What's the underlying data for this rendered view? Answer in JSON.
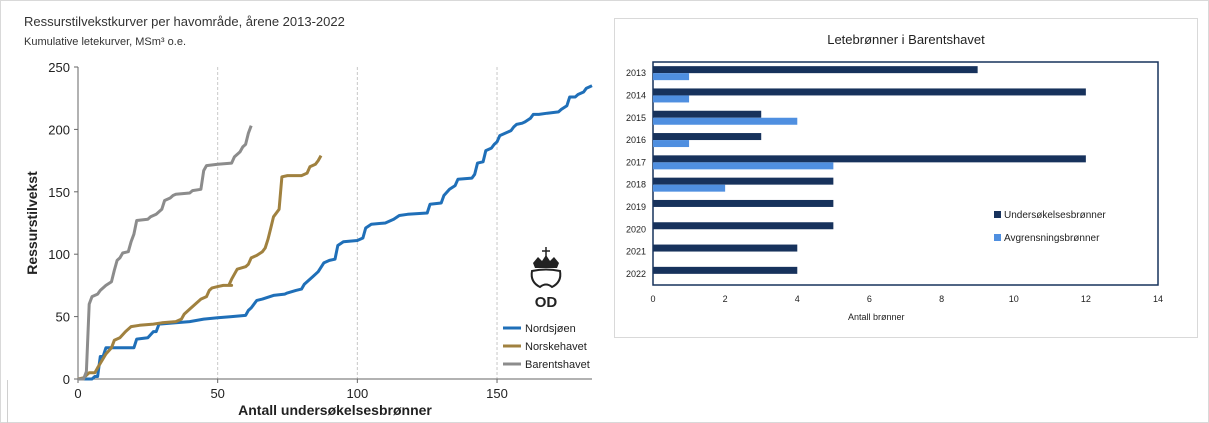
{
  "left_chart": {
    "title": "Ressurstilvekstkurver per havområde, årene 2013-2022",
    "subtitle": "Kumulative letekurver, MSm³ o.e.",
    "logo_text": "OD",
    "chart_data": {
      "type": "line",
      "xlabel": "Antall undersøkelsesbrønner",
      "ylabel": "Ressurstilvekst",
      "xlim": [
        0,
        184
      ],
      "ylim": [
        0,
        250
      ],
      "xticks": [
        0,
        50,
        100,
        150
      ],
      "yticks": [
        0,
        50,
        100,
        150,
        200,
        250
      ],
      "grid": "vertical dashed at 50, 100, 150",
      "legend_position": "bottom-right",
      "series": [
        {
          "name": "Nordsjøen",
          "color": "#1f6fb8",
          "points": [
            [
              0,
              0
            ],
            [
              5,
              0
            ],
            [
              6,
              2
            ],
            [
              7,
              2
            ],
            [
              8,
              18
            ],
            [
              9,
              18
            ],
            [
              10,
              25
            ],
            [
              20,
              25
            ],
            [
              21,
              32
            ],
            [
              25,
              33
            ],
            [
              27,
              38
            ],
            [
              28,
              38
            ],
            [
              29,
              44
            ],
            [
              35,
              45
            ],
            [
              40,
              46
            ],
            [
              45,
              48
            ],
            [
              50,
              49
            ],
            [
              55,
              50
            ],
            [
              60,
              51
            ],
            [
              61,
              55
            ],
            [
              62,
              57
            ],
            [
              64,
              63
            ],
            [
              66,
              64
            ],
            [
              70,
              67
            ],
            [
              74,
              68
            ],
            [
              75,
              69
            ],
            [
              78,
              71
            ],
            [
              80,
              72
            ],
            [
              81,
              76
            ],
            [
              82,
              78
            ],
            [
              84,
              82
            ],
            [
              86,
              86
            ],
            [
              88,
              93
            ],
            [
              90,
              95
            ],
            [
              92,
              96
            ],
            [
              93,
              107
            ],
            [
              95,
              110
            ],
            [
              100,
              111
            ],
            [
              102,
              113
            ],
            [
              103,
              121
            ],
            [
              105,
              124
            ],
            [
              110,
              125
            ],
            [
              113,
              128
            ],
            [
              115,
              131
            ],
            [
              118,
              132
            ],
            [
              125,
              133
            ],
            [
              126,
              140
            ],
            [
              130,
              141
            ],
            [
              131,
              147
            ],
            [
              133,
              152
            ],
            [
              135,
              155
            ],
            [
              136,
              160
            ],
            [
              141,
              161
            ],
            [
              142,
              164
            ],
            [
              143,
              173
            ],
            [
              145,
              174
            ],
            [
              146,
              183
            ],
            [
              148,
              185
            ],
            [
              149,
              188
            ],
            [
              150,
              190
            ],
            [
              151,
              195
            ],
            [
              152,
              196
            ],
            [
              155,
              199
            ],
            [
              156,
              202
            ],
            [
              157,
              204
            ],
            [
              159,
              205
            ],
            [
              160,
              206
            ],
            [
              162,
              209
            ],
            [
              163,
              212
            ],
            [
              165,
              212
            ],
            [
              168,
              213
            ],
            [
              172,
              214
            ],
            [
              173,
              216
            ],
            [
              175,
              219
            ],
            [
              176,
              226
            ],
            [
              178,
              226
            ],
            [
              179,
              228
            ],
            [
              181,
              230
            ],
            [
              182,
              233
            ],
            [
              183,
              234
            ],
            [
              184,
              235
            ]
          ]
        },
        {
          "name": "Norskehavet",
          "color": "#a0813f",
          "points": [
            [
              0,
              0
            ],
            [
              2,
              1
            ],
            [
              3,
              3
            ],
            [
              4,
              5
            ],
            [
              6,
              5
            ],
            [
              7,
              9
            ],
            [
              10,
              20
            ],
            [
              12,
              25
            ],
            [
              13,
              31
            ],
            [
              15,
              33
            ],
            [
              17,
              38
            ],
            [
              19,
              42
            ],
            [
              22,
              43
            ],
            [
              27,
              44
            ],
            [
              30,
              45
            ],
            [
              35,
              46
            ],
            [
              37,
              48
            ],
            [
              38,
              52
            ],
            [
              40,
              56
            ],
            [
              42,
              60
            ],
            [
              44,
              64
            ],
            [
              46,
              66
            ],
            [
              47,
              71
            ],
            [
              48,
              73
            ],
            [
              50,
              74
            ],
            [
              52,
              75
            ],
            [
              55,
              75
            ],
            [
              54,
              75
            ],
            [
              55,
              80
            ],
            [
              56,
              84
            ],
            [
              57,
              88
            ],
            [
              60,
              90
            ],
            [
              61,
              92
            ],
            [
              62,
              97
            ],
            [
              64,
              99
            ],
            [
              66,
              102
            ],
            [
              67,
              105
            ],
            [
              68,
              112
            ],
            [
              69,
              121
            ],
            [
              70,
              130
            ],
            [
              72,
              136
            ],
            [
              73,
              162
            ],
            [
              75,
              163
            ],
            [
              80,
              163
            ],
            [
              82,
              165
            ],
            [
              83,
              170
            ],
            [
              85,
              172
            ],
            [
              86,
              175
            ],
            [
              87,
              179
            ]
          ]
        },
        {
          "name": "Barentshavet",
          "color": "#8c8c8c",
          "points": [
            [
              0,
              0
            ],
            [
              2,
              0
            ],
            [
              3,
              6
            ],
            [
              4,
              60
            ],
            [
              5,
              66
            ],
            [
              7,
              68
            ],
            [
              8,
              71
            ],
            [
              10,
              75
            ],
            [
              12,
              78
            ],
            [
              13,
              87
            ],
            [
              14,
              95
            ],
            [
              15,
              97
            ],
            [
              16,
              101
            ],
            [
              18,
              102
            ],
            [
              19,
              110
            ],
            [
              20,
              116
            ],
            [
              21,
              127
            ],
            [
              25,
              128
            ],
            [
              26,
              130
            ],
            [
              28,
              132
            ],
            [
              29,
              134
            ],
            [
              30,
              136
            ],
            [
              31,
              143
            ],
            [
              33,
              145
            ],
            [
              34,
              147
            ],
            [
              35,
              148
            ],
            [
              40,
              149
            ],
            [
              41,
              151
            ],
            [
              44,
              152
            ],
            [
              45,
              167
            ],
            [
              46,
              171
            ],
            [
              50,
              172
            ],
            [
              55,
              173
            ],
            [
              56,
              178
            ],
            [
              58,
              182
            ],
            [
              59,
              186
            ],
            [
              60,
              188
            ],
            [
              61,
              197
            ],
            [
              62,
              203
            ]
          ]
        }
      ]
    }
  },
  "right_chart": {
    "chart_data": {
      "type": "bar",
      "orientation": "horizontal",
      "title": "Letebrønner i Barentshavet",
      "xlabel": "Antall brønner",
      "xlim": [
        0,
        14
      ],
      "xticks": [
        0,
        2,
        4,
        6,
        8,
        10,
        12,
        14
      ],
      "categories": [
        "2013",
        "2014",
        "2015",
        "2016",
        "2017",
        "2018",
        "2019",
        "2020",
        "2021",
        "2022"
      ],
      "legend_position": "right",
      "series": [
        {
          "name": "Undersøkelsesbrønner",
          "color": "#17325c",
          "values": [
            9,
            12,
            3,
            3,
            12,
            5,
            5,
            5,
            4,
            4
          ]
        },
        {
          "name": "Avgrensningsbrønner",
          "color": "#4f8fe0",
          "values": [
            1,
            1,
            4,
            1,
            5,
            2,
            0,
            0,
            0,
            0
          ]
        }
      ]
    }
  }
}
